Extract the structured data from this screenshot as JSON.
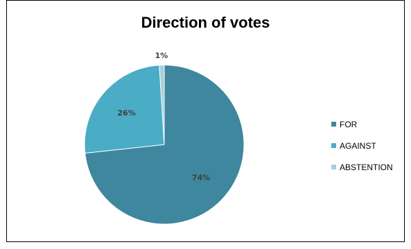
{
  "chart_data": {
    "type": "pie",
    "title": "Direction of votes",
    "categories": [
      "FOR",
      "AGAINST",
      "ABSTENTION"
    ],
    "values": [
      74,
      26,
      1
    ],
    "data_labels": [
      "74%",
      "26%",
      "1%"
    ],
    "colors": [
      "#3e879e",
      "#4aacc5",
      "#a6cfdb"
    ],
    "legend_position": "right"
  }
}
